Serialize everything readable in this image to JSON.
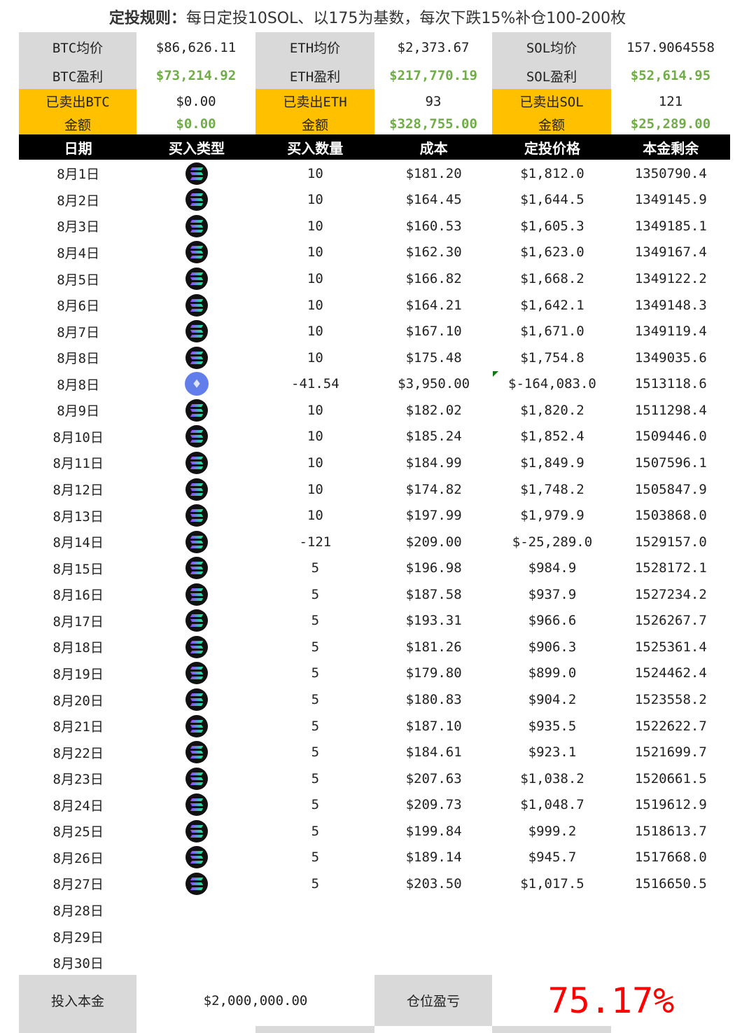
{
  "title": {
    "bold": "定投规则：",
    "rest": "每日定投10SOL、以175为基数，每次下跌15%补仓100-200枚"
  },
  "summary": {
    "btc": {
      "avg_label": "BTC均价",
      "avg": "$86,626.11",
      "profit_label": "BTC盈利",
      "profit": "$73,214.92",
      "sold_label": "已卖出BTC",
      "sold": "$0.00",
      "amount_label": "金额",
      "amount": "$0.00"
    },
    "eth": {
      "avg_label": "ETH均价",
      "avg": "$2,373.67",
      "profit_label": "ETH盈利",
      "profit": "$217,770.19",
      "sold_label": "已卖出ETH",
      "sold": "93",
      "amount_label": "金额",
      "amount": "$328,755.00"
    },
    "sol": {
      "avg_label": "SOL均价",
      "avg": "157.9064558",
      "profit_label": "SOL盈利",
      "profit": "$52,614.95",
      "sold_label": "已卖出SOL",
      "sold": "121",
      "amount_label": "金额",
      "amount": "$25,289.00"
    }
  },
  "colors": {
    "grey": "#d9d9d9",
    "gold": "#ffc000",
    "profit_green": "#70ad47",
    "loss_red": "#ff0000",
    "header_bg": "#000000"
  },
  "columns": [
    "日期",
    "买入类型",
    "买入数量",
    "成本",
    "定投价格",
    "本金剩余"
  ],
  "rows": [
    {
      "date": "8月1日",
      "type": "sol-icon",
      "qty": "10",
      "cost": "$181.20",
      "price": "$1,812.0",
      "remain": "1350790.4"
    },
    {
      "date": "8月2日",
      "type": "sol-icon",
      "qty": "10",
      "cost": "$164.45",
      "price": "$1,644.5",
      "remain": "1349145.9"
    },
    {
      "date": "8月3日",
      "type": "sol-icon",
      "qty": "10",
      "cost": "$160.53",
      "price": "$1,605.3",
      "remain": "1349185.1"
    },
    {
      "date": "8月4日",
      "type": "sol-icon",
      "qty": "10",
      "cost": "$162.30",
      "price": "$1,623.0",
      "remain": "1349167.4"
    },
    {
      "date": "8月5日",
      "type": "sol-icon",
      "qty": "10",
      "cost": "$166.82",
      "price": "$1,668.2",
      "remain": "1349122.2"
    },
    {
      "date": "8月6日",
      "type": "sol-icon",
      "qty": "10",
      "cost": "$164.21",
      "price": "$1,642.1",
      "remain": "1349148.3"
    },
    {
      "date": "8月7日",
      "type": "sol-icon",
      "qty": "10",
      "cost": "$167.10",
      "price": "$1,671.0",
      "remain": "1349119.4"
    },
    {
      "date": "8月8日",
      "type": "sol-icon",
      "qty": "10",
      "cost": "$175.48",
      "price": "$1,754.8",
      "remain": "1349035.6"
    },
    {
      "date": "8月8日",
      "type": "eth-icon",
      "qty": "-41.54",
      "cost": "$3,950.00",
      "price": "$-164,083.0",
      "remain": "1513118.6",
      "flag": true
    },
    {
      "date": "8月9日",
      "type": "sol-icon",
      "qty": "10",
      "cost": "$182.02",
      "price": "$1,820.2",
      "remain": "1511298.4"
    },
    {
      "date": "8月10日",
      "type": "sol-icon",
      "qty": "10",
      "cost": "$185.24",
      "price": "$1,852.4",
      "remain": "1509446.0"
    },
    {
      "date": "8月11日",
      "type": "sol-icon",
      "qty": "10",
      "cost": "$184.99",
      "price": "$1,849.9",
      "remain": "1507596.1"
    },
    {
      "date": "8月12日",
      "type": "sol-icon",
      "qty": "10",
      "cost": "$174.82",
      "price": "$1,748.2",
      "remain": "1505847.9"
    },
    {
      "date": "8月13日",
      "type": "sol-icon",
      "qty": "10",
      "cost": "$197.99",
      "price": "$1,979.9",
      "remain": "1503868.0"
    },
    {
      "date": "8月14日",
      "type": "sol-icon",
      "qty": "-121",
      "cost": "$209.00",
      "price": "$-25,289.0",
      "remain": "1529157.0"
    },
    {
      "date": "8月15日",
      "type": "sol-icon",
      "qty": "5",
      "cost": "$196.98",
      "price": "$984.9",
      "remain": "1528172.1"
    },
    {
      "date": "8月16日",
      "type": "sol-icon",
      "qty": "5",
      "cost": "$187.58",
      "price": "$937.9",
      "remain": "1527234.2"
    },
    {
      "date": "8月17日",
      "type": "sol-icon",
      "qty": "5",
      "cost": "$193.31",
      "price": "$966.6",
      "remain": "1526267.7"
    },
    {
      "date": "8月18日",
      "type": "sol-icon",
      "qty": "5",
      "cost": "$181.26",
      "price": "$906.3",
      "remain": "1525361.4"
    },
    {
      "date": "8月19日",
      "type": "sol-icon",
      "qty": "5",
      "cost": "$179.80",
      "price": "$899.0",
      "remain": "1524462.4"
    },
    {
      "date": "8月20日",
      "type": "sol-icon",
      "qty": "5",
      "cost": "$180.83",
      "price": "$904.2",
      "remain": "1523558.2"
    },
    {
      "date": "8月21日",
      "type": "sol-icon",
      "qty": "5",
      "cost": "$187.10",
      "price": "$935.5",
      "remain": "1522622.7"
    },
    {
      "date": "8月22日",
      "type": "sol-icon",
      "qty": "5",
      "cost": "$184.61",
      "price": "$923.1",
      "remain": "1521699.7"
    },
    {
      "date": "8月23日",
      "type": "sol-icon",
      "qty": "5",
      "cost": "$207.63",
      "price": "$1,038.2",
      "remain": "1520661.5"
    },
    {
      "date": "8月24日",
      "type": "sol-icon",
      "qty": "5",
      "cost": "$209.73",
      "price": "$1,048.7",
      "remain": "1519612.9"
    },
    {
      "date": "8月25日",
      "type": "sol-icon",
      "qty": "5",
      "cost": "$199.84",
      "price": "$999.2",
      "remain": "1518613.7"
    },
    {
      "date": "8月26日",
      "type": "sol-icon",
      "qty": "5",
      "cost": "$189.14",
      "price": "$945.7",
      "remain": "1517668.0"
    },
    {
      "date": "8月27日",
      "type": "sol-icon",
      "qty": "5",
      "cost": "$203.50",
      "price": "$1,017.5",
      "remain": "1516650.5"
    },
    {
      "date": "8月28日"
    },
    {
      "date": "8月29日"
    },
    {
      "date": "8月30日"
    }
  ],
  "footer": {
    "principal_label": "投入本金",
    "principal": "$2,000,000.00",
    "pnl_label": "仓位盈亏",
    "pnl": "75.17%"
  }
}
